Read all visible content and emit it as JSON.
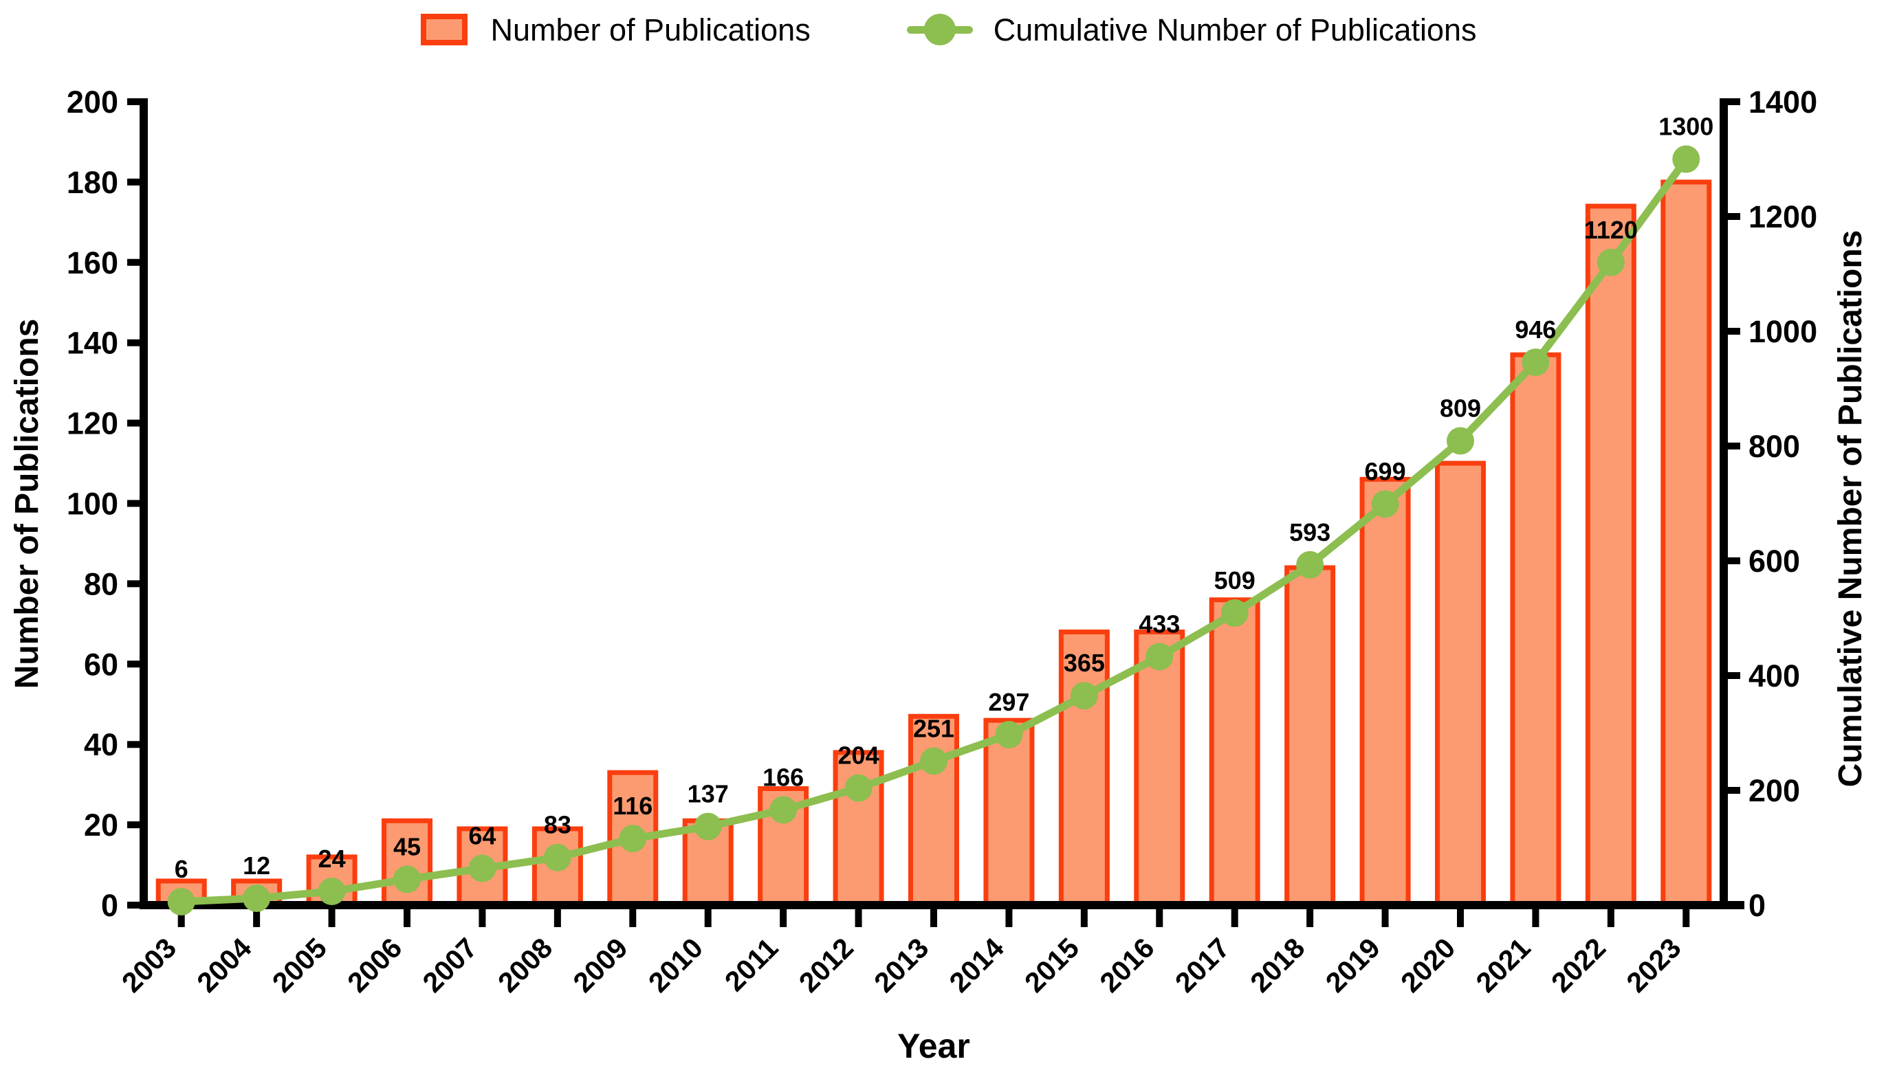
{
  "legend": {
    "items": [
      {
        "label": "Number of Publications",
        "marker": "bar-swatch-icon"
      },
      {
        "label": "Cumulative Number of Publications",
        "marker": "line-dot-icon"
      }
    ]
  },
  "colors": {
    "bar_fill": "#FC9B72",
    "bar_stroke": "#FA3E0F",
    "line": "#8DBE50",
    "axis": "#000000",
    "text": "#000000",
    "background": "#FFFFFF"
  },
  "chart_data": {
    "type": "bar+line",
    "categories": [
      "2003",
      "2004",
      "2005",
      "2006",
      "2007",
      "2008",
      "2009",
      "2010",
      "2011",
      "2012",
      "2013",
      "2014",
      "2015",
      "2016",
      "2017",
      "2018",
      "2019",
      "2020",
      "2021",
      "2022",
      "2023"
    ],
    "series": [
      {
        "name": "Number of Publications",
        "type": "bar",
        "yaxis": "left",
        "values": [
          6,
          6,
          12,
          21,
          19,
          19,
          33,
          21,
          29,
          38,
          47,
          46,
          68,
          68,
          76,
          84,
          106,
          110,
          137,
          174,
          180
        ]
      },
      {
        "name": "Cumulative Number of Publications",
        "type": "line",
        "yaxis": "right",
        "values": [
          6,
          12,
          24,
          45,
          64,
          83,
          116,
          137,
          166,
          204,
          251,
          297,
          365,
          433,
          509,
          593,
          699,
          809,
          946,
          1120,
          1300
        ],
        "point_labels": [
          "6",
          "12",
          "24",
          "45",
          "64",
          "83",
          "116",
          "137",
          "166",
          "204",
          "251",
          "297",
          "365",
          "433",
          "509",
          "593",
          "699",
          "809",
          "946",
          "1120",
          "1300"
        ]
      }
    ],
    "x_axis": {
      "title": "Year",
      "tick_rotation": -45
    },
    "left_axis": {
      "title": "Number of Publications",
      "min": 0,
      "max": 200,
      "step": 20,
      "ticks": [
        "0",
        "20",
        "40",
        "60",
        "80",
        "100",
        "120",
        "140",
        "160",
        "180",
        "200"
      ]
    },
    "right_axis": {
      "title": "Cumulative Number of Publications",
      "min": 0,
      "max": 1400,
      "step": 200,
      "ticks": [
        "0",
        "200",
        "400",
        "600",
        "800",
        "1000",
        "1200",
        "1400"
      ]
    },
    "grid": false,
    "legend_position": "top"
  }
}
